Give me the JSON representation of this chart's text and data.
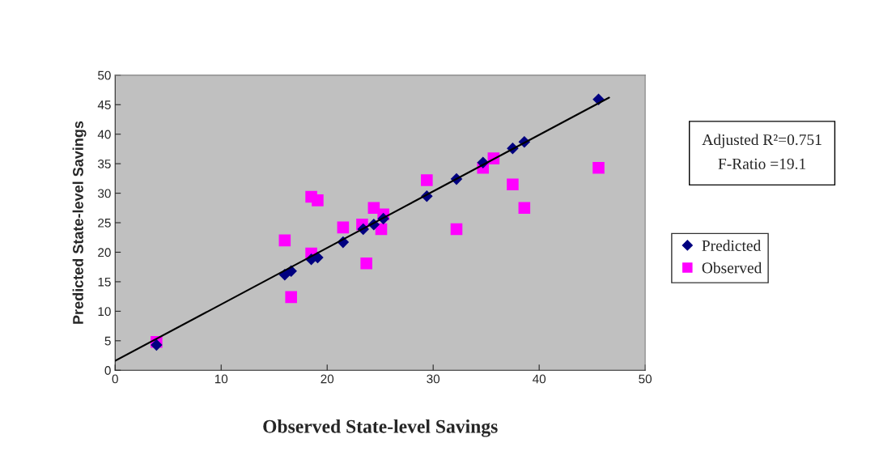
{
  "chart_data": {
    "type": "scatter",
    "xlabel": "Observed State-level Savings",
    "ylabel": "Predicted State-level Savings",
    "xlim": [
      0,
      50
    ],
    "ylim": [
      0,
      50
    ],
    "xticks": [
      0,
      10,
      20,
      30,
      40,
      50
    ],
    "yticks": [
      0,
      5,
      10,
      15,
      20,
      25,
      30,
      35,
      40,
      45,
      50
    ],
    "grid": false,
    "legend": "right",
    "annotations": [
      "Adjusted R²=0.751\nF-Ratio =19.1"
    ],
    "series": [
      {
        "name": "Predicted",
        "color": "#000080",
        "marker": "diamond",
        "x": [
          3.9,
          16.0,
          16.6,
          18.5,
          19.1,
          21.5,
          23.4,
          24.4,
          25.3,
          29.4,
          32.2,
          34.7,
          37.5,
          38.6,
          45.6
        ],
        "values": [
          4.3,
          16.2,
          16.8,
          18.8,
          19.1,
          21.7,
          23.9,
          24.7,
          25.7,
          29.5,
          32.4,
          35.2,
          37.6,
          38.7,
          45.9
        ]
      },
      {
        "name": "Observed",
        "color": "#ff00ff",
        "marker": "square",
        "x": [
          3.9,
          16.0,
          16.6,
          18.5,
          19.1,
          18.5,
          21.5,
          23.7,
          23.3,
          24.4,
          25.1,
          25.3,
          29.4,
          32.2,
          34.7,
          35.7,
          37.5,
          38.6,
          45.6
        ],
        "values": [
          4.8,
          22.0,
          12.4,
          29.4,
          28.8,
          19.8,
          24.2,
          18.1,
          24.7,
          27.5,
          23.9,
          26.4,
          32.2,
          23.9,
          34.3,
          35.9,
          31.5,
          27.5,
          34.3
        ]
      },
      {
        "type": "line",
        "color": "#000000",
        "line_style": "solid",
        "marker": "none",
        "x": [
          0,
          46.6
        ],
        "values": [
          1.6,
          46.2
        ]
      }
    ]
  }
}
